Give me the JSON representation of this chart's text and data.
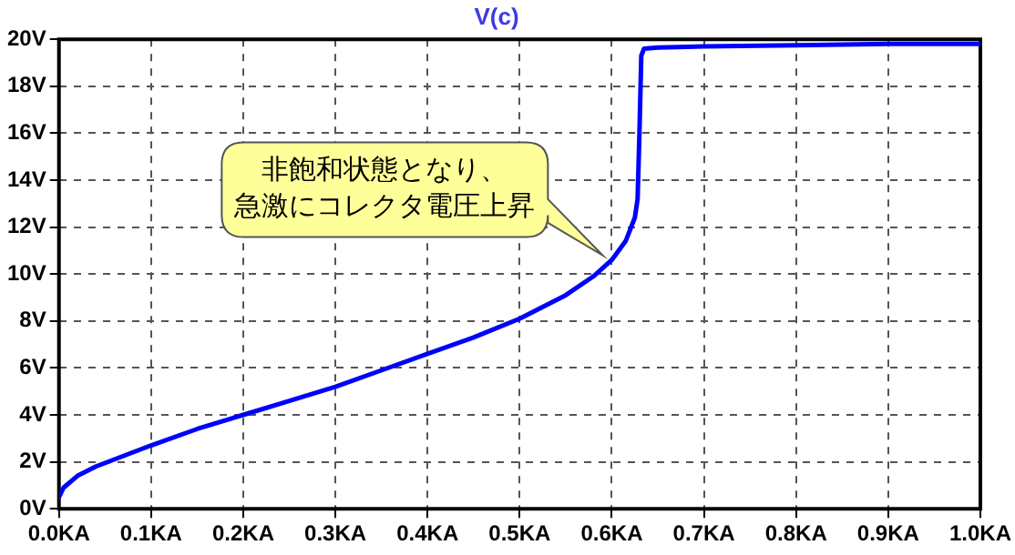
{
  "chart_data": {
    "type": "line",
    "title": "V(c)",
    "x": [
      0,
      0.005,
      0.02,
      0.04,
      0.06,
      0.1,
      0.15,
      0.2,
      0.25,
      0.3,
      0.35,
      0.4,
      0.45,
      0.5,
      0.55,
      0.58,
      0.6,
      0.615,
      0.625,
      0.628,
      0.63,
      0.632,
      0.635,
      0.65,
      0.7,
      0.8,
      0.9,
      1.0
    ],
    "series": [
      {
        "color": "#0000ff",
        "values": [
          0.5,
          0.9,
          1.4,
          1.8,
          2.1,
          2.7,
          3.4,
          4.0,
          4.6,
          5.2,
          5.9,
          6.6,
          7.3,
          8.1,
          9.1,
          9.9,
          10.6,
          11.4,
          12.4,
          13.2,
          16,
          19.3,
          19.6,
          19.65,
          19.7,
          19.75,
          19.8,
          19.8
        ]
      }
    ],
    "xlim": [
      0,
      1
    ],
    "xticks": [
      {
        "value": 0,
        "label": "0.0KA"
      },
      {
        "value": 0.1,
        "label": "0.1KA"
      },
      {
        "value": 0.2,
        "label": "0.2KA"
      },
      {
        "value": 0.3,
        "label": "0.3KA"
      },
      {
        "value": 0.4,
        "label": "0.4KA"
      },
      {
        "value": 0.5,
        "label": "0.5KA"
      },
      {
        "value": 0.6,
        "label": "0.6KA"
      },
      {
        "value": 0.7,
        "label": "0.7KA"
      },
      {
        "value": 0.8,
        "label": "0.8KA"
      },
      {
        "value": 0.9,
        "label": "0.9KA"
      },
      {
        "value": 1,
        "label": "1.0KA"
      }
    ],
    "ylim": [
      0,
      20
    ],
    "yticks": [
      {
        "value": 0,
        "label": "0V"
      },
      {
        "value": 2,
        "label": "2V"
      },
      {
        "value": 4,
        "label": "4V"
      },
      {
        "value": 6,
        "label": "6V"
      },
      {
        "value": 8,
        "label": "8V"
      },
      {
        "value": 10,
        "label": "10V"
      },
      {
        "value": 12,
        "label": "12V"
      },
      {
        "value": 14,
        "label": "14V"
      },
      {
        "value": 16,
        "label": "16V"
      },
      {
        "value": 18,
        "label": "18V"
      },
      {
        "value": 20,
        "label": "20V"
      }
    ],
    "annotations": [
      {
        "text": "非飽和状態となり、急激にコレクタ電圧上昇",
        "x": 0.59,
        "y": 10.8
      }
    ],
    "grid": true,
    "legend": false,
    "marker": "none",
    "line_style": "solid"
  }
}
